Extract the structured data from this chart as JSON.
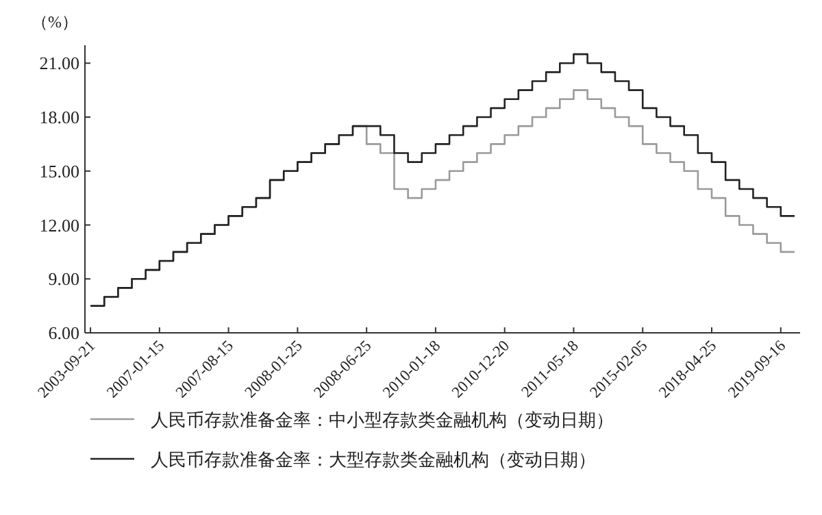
{
  "chart_data": {
    "type": "step",
    "ylabel": "（%）",
    "categories": [
      "2003-09-21",
      null,
      null,
      null,
      null,
      "2007-01-15",
      null,
      null,
      null,
      null,
      "2007-08-15",
      null,
      null,
      null,
      null,
      "2008-01-25",
      null,
      null,
      null,
      null,
      "2008-06-25",
      null,
      null,
      null,
      null,
      "2010-01-18",
      null,
      null,
      null,
      null,
      "2010-12-20",
      null,
      null,
      null,
      null,
      "2011-05-18",
      null,
      null,
      null,
      null,
      "2015-02-05",
      null,
      null,
      null,
      null,
      "2018-04-25",
      null,
      null,
      null,
      null,
      "2019-09-16",
      null
    ],
    "series": [
      {
        "name": "人民币存款准备金率：中小型存款类金融机构（变动日期）",
        "color": "#9a9a9a",
        "values": [
          null,
          7.5,
          8,
          8.5,
          9,
          9.5,
          10,
          10.5,
          11,
          11.5,
          12,
          12.5,
          13,
          13.5,
          14.5,
          15,
          15.5,
          16,
          16.5,
          17,
          17.5,
          16.5,
          16,
          14,
          13.5,
          14,
          14.5,
          15,
          15.5,
          16,
          16.5,
          17,
          17.5,
          18,
          18.5,
          19,
          19.5,
          19,
          18.5,
          18,
          17.5,
          16.5,
          16,
          15.5,
          15,
          14,
          13.5,
          12.5,
          12,
          11.5,
          11,
          10.5
        ]
      },
      {
        "name": "人民币存款准备金率：大型存款类金融机构（变动日期）",
        "color": "#222222",
        "values": [
          7.5,
          7.5,
          8,
          8.5,
          9,
          9.5,
          10,
          10.5,
          11,
          11.5,
          12,
          12.5,
          13,
          13.5,
          14.5,
          15,
          15.5,
          16,
          16.5,
          17,
          17.5,
          17.5,
          17,
          16,
          15.5,
          16,
          16.5,
          17,
          17.5,
          18,
          18.5,
          19,
          19.5,
          20,
          20.5,
          21,
          21.5,
          21,
          20.5,
          20,
          19.5,
          18.5,
          18,
          17.5,
          17,
          16,
          15.5,
          14.5,
          14,
          13.5,
          13,
          12.5
        ]
      }
    ],
    "ylim": [
      6,
      22
    ],
    "yticks": [
      {
        "value": 6,
        "label": "6.00"
      },
      {
        "value": 9,
        "label": "9.00"
      },
      {
        "value": 12,
        "label": "12.00"
      },
      {
        "value": 15,
        "label": "15.00"
      },
      {
        "value": 18,
        "label": "18.00"
      },
      {
        "value": 21,
        "label": "21.00"
      }
    ],
    "legend": "bottom"
  }
}
